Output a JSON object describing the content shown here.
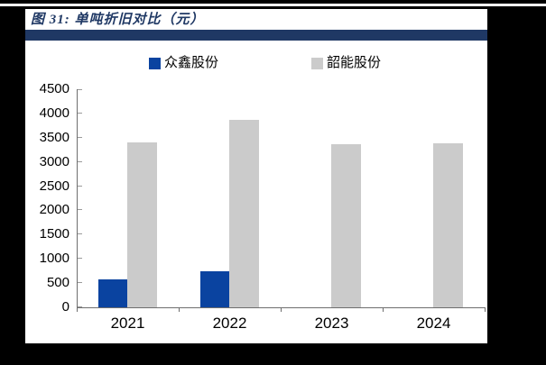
{
  "figure": {
    "title": "图 31: 单吨折旧对比（元）"
  },
  "colors": {
    "title_navy": "#1F3864",
    "header_bar": "#1F3864",
    "series1_blue": "#0A43A0",
    "series2_gray": "#CBCBCB",
    "axis_gray": "#6E6E6E",
    "background_black": "#000000",
    "panel_white": "#FFFFFF"
  },
  "chart_data": {
    "type": "bar",
    "title": "单吨折旧对比（元）",
    "categories": [
      "2021",
      "2022",
      "2023",
      "2024"
    ],
    "series": [
      {
        "name": "众鑫股份",
        "color": "#0A43A0",
        "values": [
          575,
          745,
          0,
          0
        ]
      },
      {
        "name": "韶能股份",
        "color": "#CBCBCB",
        "values": [
          3400,
          3870,
          3365,
          3390
        ]
      }
    ],
    "xlabel": "",
    "ylabel": "",
    "ylim": [
      0,
      4500
    ],
    "ytick_step": 500,
    "grid": false,
    "legend_position": "top",
    "legend_entries": [
      "众鑫股份",
      "韶能股份"
    ]
  }
}
